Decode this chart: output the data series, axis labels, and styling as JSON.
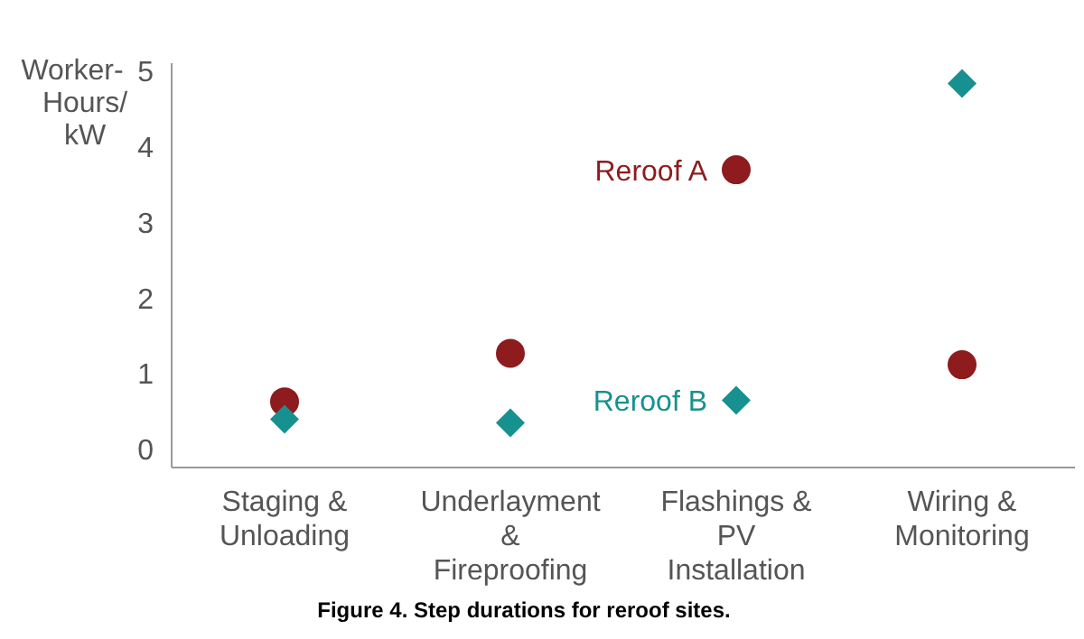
{
  "chart_data": {
    "type": "scatter",
    "ylabel": "Worker-Hours/kW",
    "categories": [
      "Staging & Unloading",
      "Underlayment & Fireproofing",
      "Flashings & PV Installation",
      "Wiring & Monitoring"
    ],
    "series": [
      {
        "name": "Reroof A",
        "color": "#8e1b1e",
        "marker": "circle",
        "values": [
          0.62,
          1.26,
          3.69,
          1.11
        ]
      },
      {
        "name": "Reroof B",
        "color": "#17918f",
        "marker": "diamond",
        "values": [
          0.39,
          0.34,
          0.64,
          4.83
        ]
      }
    ],
    "ylim": [
      -0.25,
      5.1
    ],
    "yticks": [
      0,
      1,
      2,
      3,
      4,
      5
    ],
    "grid": false,
    "legend": false,
    "annotations": [
      "Figure 4. Step durations for reroof sites."
    ]
  }
}
